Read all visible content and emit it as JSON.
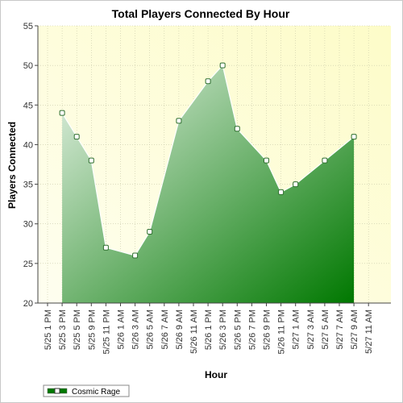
{
  "chart_data": {
    "type": "area",
    "title": "Total Players Connected By Hour",
    "xlabel": "Hour",
    "ylabel": "Players Connected",
    "ylim": [
      20,
      55
    ],
    "yticks": [
      20,
      25,
      30,
      35,
      40,
      45,
      50,
      55
    ],
    "x_ticks": [
      "5/25 1 PM",
      "5/25 3 PM",
      "5/25 5 PM",
      "5/25 9 PM",
      "5/25 11 PM",
      "5/26 1 AM",
      "5/26 3 AM",
      "5/26 5 AM",
      "5/26 7 AM",
      "5/26 9 AM",
      "5/26 11 AM",
      "5/26 1 PM",
      "5/26 3 PM",
      "5/26 5 PM",
      "5/26 7 PM",
      "5/26 9 PM",
      "5/26 11 PM",
      "5/27 1 AM",
      "5/27 3 AM",
      "5/27 5 AM",
      "5/27 7 AM",
      "5/27 9 AM",
      "5/27 11 AM"
    ],
    "grid": true,
    "legend_position": "bottom-left",
    "series": [
      {
        "name": "Cosmic Rage",
        "x": [
          "5/25 3 PM",
          "5/25 5 PM",
          "5/25 9 PM",
          "5/25 11 PM",
          "5/26 3 AM",
          "5/26 5 AM",
          "5/26 9 AM",
          "5/26 1 PM",
          "5/26 3 PM",
          "5/26 5 PM",
          "5/26 9 PM",
          "5/26 11 PM",
          "5/27 1 AM",
          "5/27 5 AM",
          "5/27 9 AM"
        ],
        "values": [
          44,
          41,
          38,
          27,
          26,
          29,
          43,
          48,
          50,
          42,
          38,
          34,
          35,
          38,
          41
        ],
        "color_dark": "#007800",
        "color_light": "#e6f2e6"
      }
    ],
    "plot_background_light": "#fefef0",
    "plot_background_dark": "#fdfcc8"
  }
}
